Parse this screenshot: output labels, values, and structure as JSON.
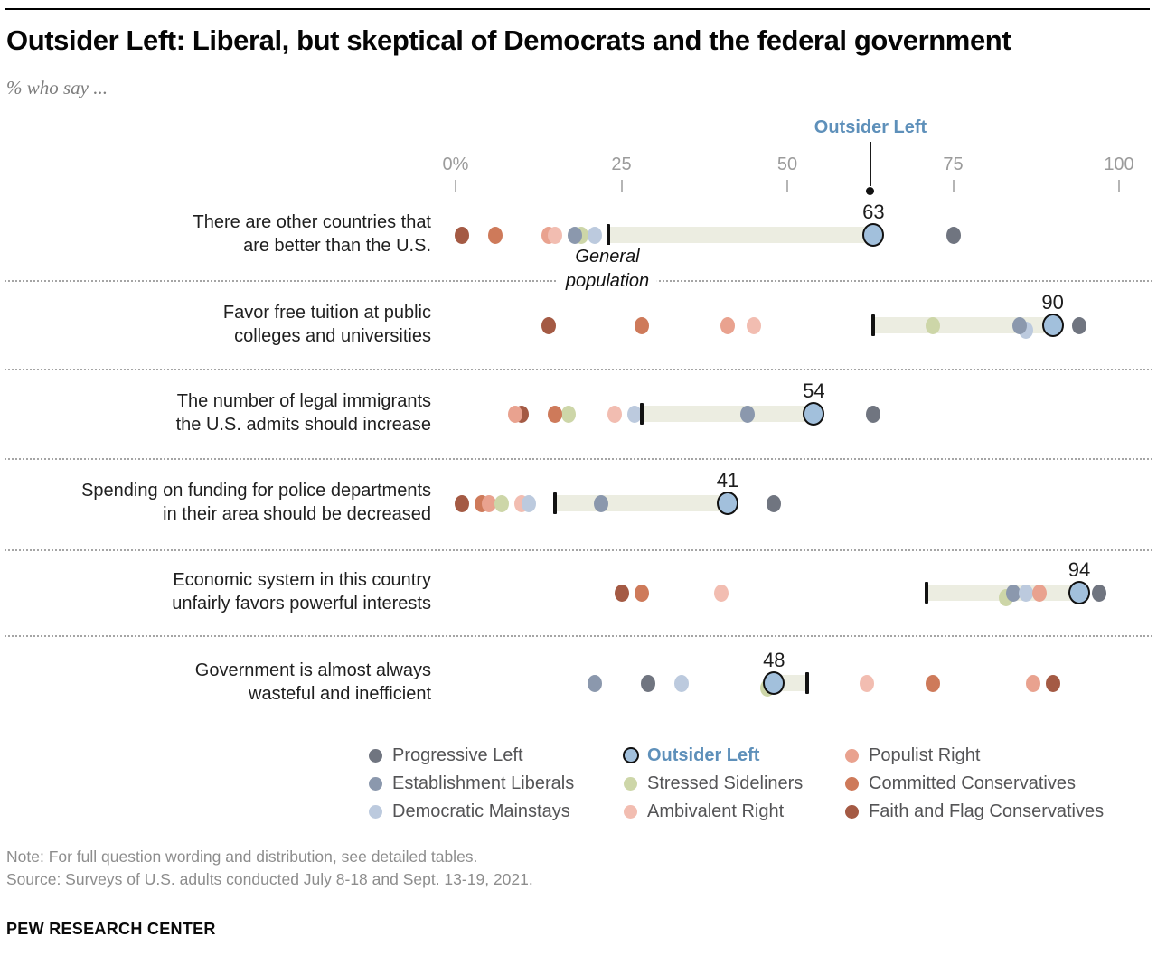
{
  "header": {
    "title": "Outsider Left: Liberal, but skeptical of Democrats and the federal government",
    "subtitle": "% who say ...",
    "callout_label": "Outsider Left",
    "gen_pop_lines": [
      "General",
      "population"
    ]
  },
  "axis": {
    "ticks": [
      "0%",
      "25",
      "50",
      "75",
      "100"
    ],
    "min": 0,
    "max": 100
  },
  "colors": {
    "bar": "#ecede1",
    "callout_blue": "#5e90ba",
    "tick_black": "#121212",
    "axis_gray": "#9b9b9b"
  },
  "groups": {
    "progressive_left": {
      "label": "Progressive Left",
      "color": "#707580"
    },
    "establishment_liberals": {
      "label": "Establishment Liberals",
      "color": "#8b98ad"
    },
    "democratic_mainstays": {
      "label": "Democratic Mainstays",
      "color": "#bccade"
    },
    "outsider_left": {
      "label": "Outsider Left",
      "color": "#a2c0dc"
    },
    "stressed_sideliners": {
      "label": "Stressed Sideliners",
      "color": "#cdd6a8"
    },
    "ambivalent_right": {
      "label": "Ambivalent Right",
      "color": "#f2bdb1"
    },
    "populist_right": {
      "label": "Populist Right",
      "color": "#e9a28f"
    },
    "committed_conservatives": {
      "label": "Committed Conservatives",
      "color": "#ce7a5a"
    },
    "faith_flag_conservatives": {
      "label": "Faith and Flag Conservatives",
      "color": "#a45a44"
    }
  },
  "chart_data": {
    "type": "dot-plot",
    "xlim": [
      0,
      100
    ],
    "highlight_group": "outsider_left",
    "rows": [
      {
        "label_lines": [
          "There are other countries that",
          "are better than the U.S."
        ],
        "outsider_left": 63,
        "general_population": 23,
        "dots": [
          {
            "group": "faith_flag_conservatives",
            "value": 1
          },
          {
            "group": "committed_conservatives",
            "value": 6
          },
          {
            "group": "populist_right",
            "value": 14
          },
          {
            "group": "ambivalent_right",
            "value": 15
          },
          {
            "group": "stressed_sideliners",
            "value": 19
          },
          {
            "group": "establishment_liberals",
            "value": 18
          },
          {
            "group": "democratic_mainstays",
            "value": 21
          },
          {
            "group": "progressive_left",
            "value": 75
          }
        ]
      },
      {
        "label_lines": [
          "Favor free tuition at public",
          "colleges and universities"
        ],
        "outsider_left": 90,
        "general_population": 63,
        "dots": [
          {
            "group": "faith_flag_conservatives",
            "value": 14
          },
          {
            "group": "committed_conservatives",
            "value": 28
          },
          {
            "group": "populist_right",
            "value": 41
          },
          {
            "group": "ambivalent_right",
            "value": 45
          },
          {
            "group": "stressed_sideliners",
            "value": 72
          },
          {
            "group": "democratic_mainstays",
            "value": 86,
            "dy": 5
          },
          {
            "group": "establishment_liberals",
            "value": 85
          },
          {
            "group": "progressive_left",
            "value": 94
          }
        ]
      },
      {
        "label_lines": [
          "The number of legal immigrants",
          "the U.S. admits should increase"
        ],
        "outsider_left": 54,
        "general_population": 28,
        "dots": [
          {
            "group": "faith_flag_conservatives",
            "value": 10
          },
          {
            "group": "populist_right",
            "value": 9
          },
          {
            "group": "stressed_sideliners",
            "value": 17
          },
          {
            "group": "committed_conservatives",
            "value": 15
          },
          {
            "group": "ambivalent_right",
            "value": 24
          },
          {
            "group": "democratic_mainstays",
            "value": 27
          },
          {
            "group": "establishment_liberals",
            "value": 44
          },
          {
            "group": "progressive_left",
            "value": 63
          }
        ]
      },
      {
        "label_lines": [
          "Spending on funding for police departments",
          "in their area should be decreased"
        ],
        "outsider_left": 41,
        "general_population": 15,
        "dots": [
          {
            "group": "faith_flag_conservatives",
            "value": 1
          },
          {
            "group": "committed_conservatives",
            "value": 4
          },
          {
            "group": "populist_right",
            "value": 5
          },
          {
            "group": "stressed_sideliners",
            "value": 7
          },
          {
            "group": "ambivalent_right",
            "value": 10
          },
          {
            "group": "democratic_mainstays",
            "value": 11
          },
          {
            "group": "establishment_liberals",
            "value": 22
          },
          {
            "group": "progressive_left",
            "value": 48
          }
        ]
      },
      {
        "label_lines": [
          "Economic system in this country",
          "unfairly favors powerful interests"
        ],
        "outsider_left": 94,
        "general_population": 71,
        "dots": [
          {
            "group": "faith_flag_conservatives",
            "value": 25
          },
          {
            "group": "committed_conservatives",
            "value": 28
          },
          {
            "group": "ambivalent_right",
            "value": 40
          },
          {
            "group": "stressed_sideliners",
            "value": 83,
            "dy": 5
          },
          {
            "group": "establishment_liberals",
            "value": 84
          },
          {
            "group": "democratic_mainstays",
            "value": 86
          },
          {
            "group": "populist_right",
            "value": 88
          },
          {
            "group": "progressive_left",
            "value": 97
          }
        ]
      },
      {
        "label_lines": [
          "Government is almost always",
          "wasteful and inefficient"
        ],
        "outsider_left": 48,
        "general_population": 53,
        "dots": [
          {
            "group": "establishment_liberals",
            "value": 21
          },
          {
            "group": "progressive_left",
            "value": 29
          },
          {
            "group": "democratic_mainstays",
            "value": 34
          },
          {
            "group": "stressed_sideliners",
            "value": 47,
            "dy": 5
          },
          {
            "group": "ambivalent_right",
            "value": 62
          },
          {
            "group": "committed_conservatives",
            "value": 72
          },
          {
            "group": "populist_right",
            "value": 87
          },
          {
            "group": "faith_flag_conservatives",
            "value": 90
          }
        ]
      }
    ]
  },
  "legend": {
    "columns": [
      [
        "progressive_left",
        "establishment_liberals",
        "democratic_mainstays"
      ],
      [
        "outsider_left",
        "stressed_sideliners",
        "ambivalent_right"
      ],
      [
        "populist_right",
        "committed_conservatives",
        "faith_flag_conservatives"
      ]
    ]
  },
  "footer": {
    "note": "Note: For full question wording and distribution, see detailed tables.",
    "source": "Source: Surveys of U.S. adults conducted July 8-18 and Sept. 13-19, 2021.",
    "brand": "PEW RESEARCH CENTER"
  }
}
